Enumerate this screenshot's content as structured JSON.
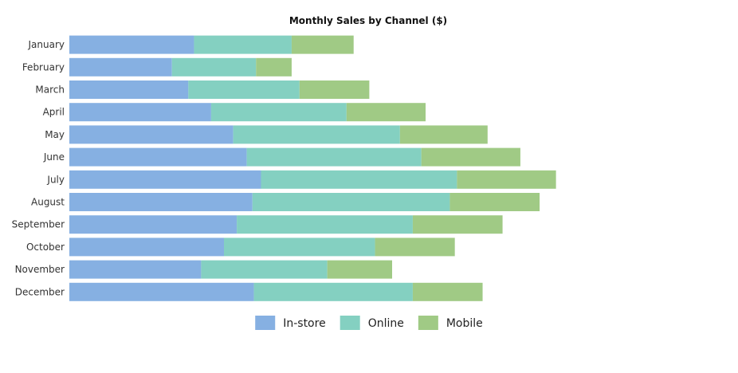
{
  "chart_data": {
    "type": "bar",
    "orientation": "horizontal",
    "stacked": true,
    "title": "Monthly Sales by Channel ($)",
    "xlabel": "",
    "ylabel": "",
    "categories": [
      "January",
      "February",
      "March",
      "April",
      "May",
      "June",
      "July",
      "August",
      "September",
      "October",
      "November",
      "December"
    ],
    "series": [
      {
        "name": "In-store",
        "color": "#86b0e2",
        "values": [
          175,
          144,
          167,
          199,
          230,
          249,
          269,
          257,
          235,
          217,
          185,
          259
        ]
      },
      {
        "name": "Online",
        "color": "#84d0c1",
        "values": [
          137,
          118,
          156,
          190,
          234,
          245,
          275,
          277,
          247,
          212,
          177,
          223
        ]
      },
      {
        "name": "Mobile",
        "color": "#a0ca85",
        "values": [
          87,
          50,
          98,
          111,
          123,
          139,
          139,
          126,
          126,
          112,
          91,
          98
        ]
      }
    ],
    "xlim": [
      0,
      840
    ],
    "grid": false,
    "legend_position": "bottom-center"
  }
}
